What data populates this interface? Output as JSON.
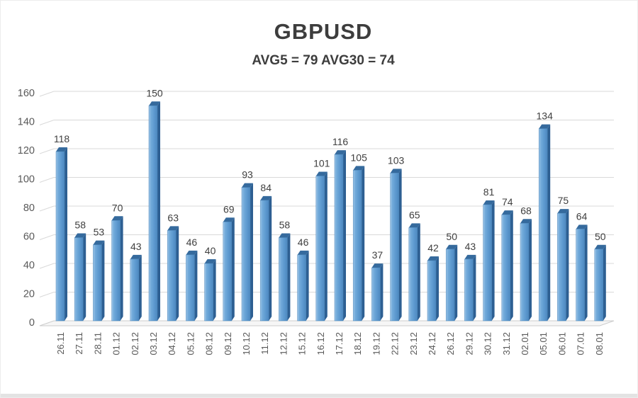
{
  "header": {
    "title": "GBPUSD",
    "subtitle": "AVG5 = 79 AVG30 = 74"
  },
  "chart_data": {
    "type": "bar",
    "title": "GBPUSD",
    "subtitle": "AVG5 = 79 AVG30 = 74",
    "categories": [
      "26.11",
      "27.11",
      "28.11",
      "01.12",
      "02.12",
      "03.12",
      "04.12",
      "05.12",
      "08.12",
      "09.12",
      "10.12",
      "11.12",
      "12.12",
      "15.12",
      "16.12",
      "17.12",
      "18.12",
      "19.12",
      "22.12",
      "23.12",
      "24.12",
      "26.12",
      "29.12",
      "30.12",
      "31.12",
      "02.01",
      "05.01",
      "06.01",
      "07.01",
      "08.01"
    ],
    "values": [
      118,
      58,
      53,
      70,
      43,
      150,
      63,
      46,
      40,
      69,
      93,
      84,
      58,
      46,
      101,
      116,
      105,
      37,
      103,
      65,
      42,
      50,
      43,
      81,
      74,
      68,
      134,
      75,
      64,
      50
    ],
    "xlabel": "",
    "ylabel": "",
    "ylim": [
      0,
      160
    ],
    "ytick_step": 20,
    "yticks": [
      0,
      20,
      40,
      60,
      80,
      100,
      120,
      140,
      160
    ],
    "grid": true,
    "legend_position": "none",
    "style": "3d-bar-excel",
    "colors": {
      "bar_main": "#5e9ad0",
      "bar_highlight": "#a3c8e8",
      "bar_shadow_right": "#4d88bf",
      "bar_side": "#2d5f92",
      "bar_top": "#356a9d",
      "grid": "#d9d9d9",
      "floor_fill": "#f6f6f6",
      "floor_stroke": "#cccccc",
      "value_label": "#3f3f3f",
      "axis_tick_label": "#595959",
      "title_text": "#3d3d3d"
    }
  }
}
